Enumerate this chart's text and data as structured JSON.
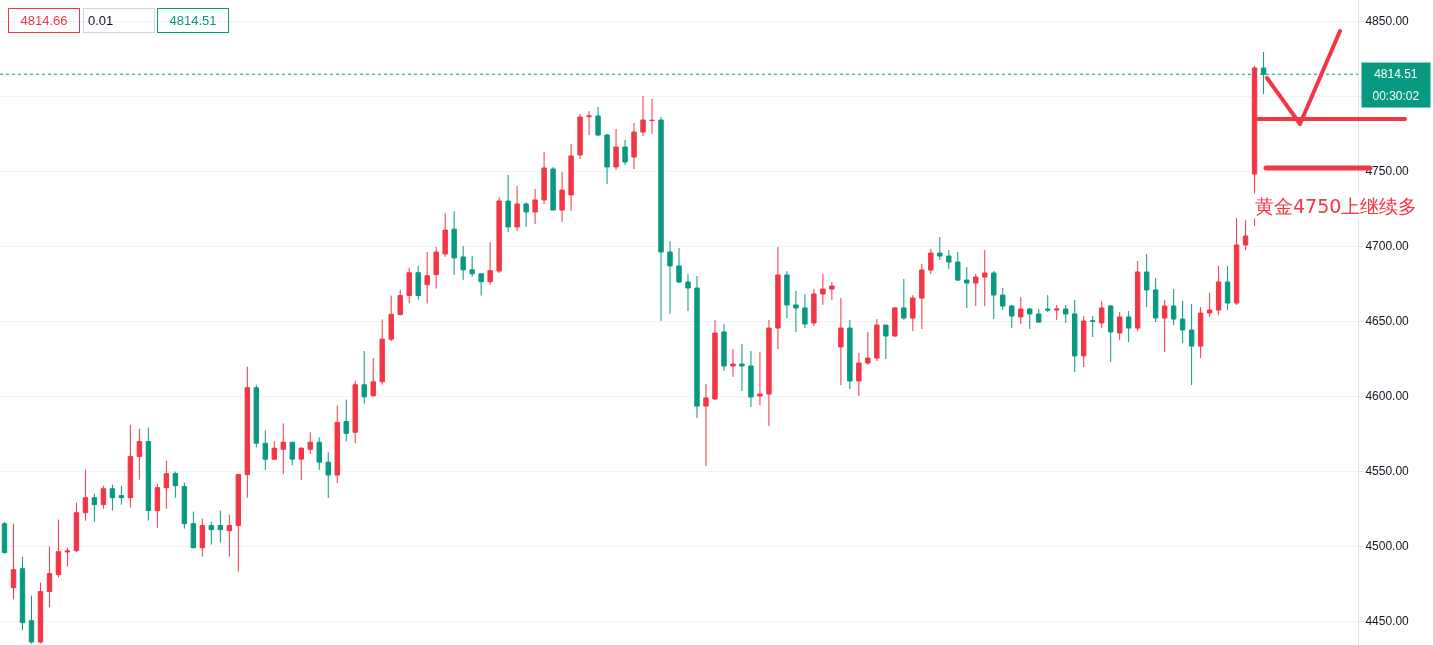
{
  "chart_data": {
    "type": "candlestick",
    "categories": [
      null,
      null,
      null,
      null,
      null,
      null,
      null,
      null,
      null,
      null,
      null,
      null,
      null,
      null,
      null,
      null,
      null,
      null,
      null,
      null,
      null,
      null,
      null,
      null,
      null,
      null,
      null,
      null,
      null,
      null,
      null,
      null,
      null,
      null,
      null,
      null,
      null,
      null,
      null,
      null,
      null,
      null,
      null,
      null,
      null,
      null,
      null,
      null,
      null,
      null,
      null,
      null,
      null,
      null,
      null,
      null,
      null,
      null,
      null,
      null,
      null,
      null,
      null,
      null,
      null,
      null,
      null,
      null,
      null,
      null,
      null,
      null,
      null,
      null,
      null,
      null,
      null,
      null,
      null,
      null,
      null,
      null,
      null,
      null,
      null,
      null,
      null,
      null,
      null,
      null,
      null,
      null,
      null,
      null,
      null,
      null,
      null,
      null,
      null,
      null,
      null,
      null,
      null,
      null,
      null,
      null,
      null,
      null,
      null,
      null,
      null,
      null,
      null,
      null,
      null,
      null,
      null,
      null,
      null,
      null,
      null,
      null,
      null,
      null,
      null,
      null,
      null,
      null,
      null,
      null,
      null,
      null,
      null,
      null,
      null,
      null,
      null,
      null,
      null,
      null,
      null,
      null,
      null,
      null,
      null,
      null,
      null,
      null,
      null,
      null,
      null
    ],
    "ohlc": [
      [
        4514.9,
        4516,
        4495,
        4495.6
      ],
      [
        4472.2,
        4514.9,
        4464.4,
        4484.2
      ],
      [
        4484.9,
        4492.9,
        4443.8,
        4448.9
      ],
      [
        4450.2,
        4466.9,
        4435,
        4436
      ],
      [
        4436,
        4475.6,
        4435,
        4469.6
      ],
      [
        4469.6,
        4499.6,
        4459.1,
        4481.6
      ],
      [
        4480.9,
        4517.6,
        4478.9,
        4496.2
      ],
      [
        4496,
        4498.9,
        4486.2,
        4496.7
      ],
      [
        4496.9,
        4528.9,
        4496,
        4522.2
      ],
      [
        4522.2,
        4550.9,
        4516.9,
        4532.2
      ],
      [
        4532.2,
        4534.9,
        4516.2,
        4527.6
      ],
      [
        4527.6,
        4540.2,
        4524.9,
        4538.2
      ],
      [
        4538.2,
        4540.9,
        4523.6,
        4532.2
      ],
      [
        4533.6,
        4540.2,
        4527.6,
        4532.2
      ],
      [
        4532.2,
        4580.9,
        4525.6,
        4559.6
      ],
      [
        4559.6,
        4578.2,
        4544.2,
        4569.6
      ],
      [
        4569.6,
        4578.9,
        4516.9,
        4523.6
      ],
      [
        4523.6,
        4541.6,
        4512.2,
        4538.9
      ],
      [
        4538.9,
        4556.9,
        4524.9,
        4548.2
      ],
      [
        4548.2,
        4549.6,
        4532.2,
        4540.2
      ],
      [
        4539.6,
        4542.2,
        4511.6,
        4514.9
      ],
      [
        4514.9,
        4522.9,
        4498.2,
        4498.9
      ],
      [
        4498.9,
        4518.2,
        4492.9,
        4513.6
      ],
      [
        4513.6,
        4516.2,
        4500.9,
        4510.9
      ],
      [
        4513.6,
        4523.6,
        4502.2,
        4510.9
      ],
      [
        4510.2,
        4520.9,
        4492.9,
        4513.6
      ],
      [
        4513.6,
        4548.2,
        4482.9,
        4547.6
      ],
      [
        4547.6,
        4619.6,
        4532.2,
        4605.6
      ],
      [
        4605.5,
        4607.5,
        4565.8,
        4568.5
      ],
      [
        4568.5,
        4577.1,
        4550.6,
        4557.9
      ],
      [
        4557.9,
        4569.8,
        4557.9,
        4565.2
      ],
      [
        4564.5,
        4581.7,
        4548,
        4569.2
      ],
      [
        4569.2,
        4569.2,
        4553.9,
        4557.9
      ],
      [
        4557.9,
        4565.8,
        4544,
        4565.2
      ],
      [
        4564.5,
        4575.8,
        4561.2,
        4569.2
      ],
      [
        4569.2,
        4572.4,
        4550.6,
        4555.9
      ],
      [
        4555.9,
        4562.5,
        4532.1,
        4547.3
      ],
      [
        4547.3,
        4593.6,
        4542,
        4582.4
      ],
      [
        4583,
        4597.6,
        4569.8,
        4575.1
      ],
      [
        4575.8,
        4610.1,
        4568.5,
        4607.5
      ],
      [
        4607.5,
        4630,
        4594.9,
        4599.5
      ],
      [
        4600.2,
        4625.3,
        4599.5,
        4609.5
      ],
      [
        4609.5,
        4651.1,
        4607.5,
        4637.9
      ],
      [
        4637.9,
        4667,
        4636.6,
        4654.4
      ],
      [
        4654.4,
        4670.9,
        4653.7,
        4667
      ],
      [
        4667,
        4685.5,
        4661.7,
        4682.2
      ],
      [
        4682.2,
        4686.8,
        4664.3,
        4667
      ],
      [
        4674.2,
        4696,
        4661.7,
        4680.2
      ],
      [
        4680.9,
        4699.3,
        4671.6,
        4696
      ],
      [
        4694.7,
        4721.8,
        4692.7,
        4710.6
      ],
      [
        4711.2,
        4723.1,
        4680.8,
        4692.1
      ],
      [
        4692.7,
        4700,
        4677.5,
        4684.1
      ],
      [
        4684.1,
        4693.4,
        4679.5,
        4681.5
      ],
      [
        4681.5,
        4681.5,
        4667,
        4676.2
      ],
      [
        4676.2,
        4702.6,
        4674.2,
        4683.5
      ],
      [
        4683.3,
        4732.7,
        4682,
        4730
      ],
      [
        4730,
        4747.3,
        4709.3,
        4712.7
      ],
      [
        4712.7,
        4740,
        4710,
        4728
      ],
      [
        4728,
        4729.3,
        4712.7,
        4722.7
      ],
      [
        4722.7,
        4738,
        4714.7,
        4730.7
      ],
      [
        4730.7,
        4762.7,
        4728,
        4752
      ],
      [
        4751.3,
        4752.7,
        4724,
        4724
      ],
      [
        4724,
        4749.3,
        4716,
        4737.3
      ],
      [
        4734,
        4768,
        4723.3,
        4760
      ],
      [
        4760.7,
        4788,
        4758,
        4786
      ],
      [
        4786.2,
        4790,
        4774,
        4786.7
      ],
      [
        4786.7,
        4792.7,
        4773.3,
        4774
      ],
      [
        4774,
        4774.7,
        4741.3,
        4752.7
      ],
      [
        4752.7,
        4778,
        4750.7,
        4766
      ],
      [
        4766,
        4770.7,
        4754,
        4756
      ],
      [
        4759.3,
        4782,
        4751.3,
        4776
      ],
      [
        4776,
        4800,
        4773.3,
        4784
      ],
      [
        4783.6,
        4798,
        4774.7,
        4783.8
      ],
      [
        4784,
        4786,
        4650,
        4696
      ],
      [
        4696,
        4703.3,
        4654.7,
        4686.7
      ],
      [
        4686.7,
        4698.7,
        4675.3,
        4676
      ],
      [
        4676,
        4681.3,
        4656.7,
        4672
      ],
      [
        4672,
        4680,
        4585.3,
        4593.3
      ],
      [
        4593.3,
        4608,
        4553.3,
        4598.7
      ],
      [
        4598,
        4650.7,
        4597.3,
        4642
      ],
      [
        4642.7,
        4648,
        4616.7,
        4620
      ],
      [
        4620,
        4631.3,
        4612.7,
        4621.3
      ],
      [
        4621.3,
        4634.7,
        4603.3,
        4620
      ],
      [
        4620,
        4630,
        4592.7,
        4599.3
      ],
      [
        4600,
        4629.3,
        4594,
        4601.3
      ],
      [
        4601.3,
        4650.7,
        4580,
        4645.3
      ],
      [
        4645.3,
        4699.3,
        4631.3,
        4680.7
      ],
      [
        4680.7,
        4683.3,
        4652,
        4660.7
      ],
      [
        4660.7,
        4670,
        4642.7,
        4658.7
      ],
      [
        4658.7,
        4668,
        4645.3,
        4648
      ],
      [
        4648.7,
        4671.3,
        4646.7,
        4668
      ],
      [
        4668,
        4681.3,
        4660.7,
        4671.3
      ],
      [
        4671.3,
        4676,
        4664,
        4673.3
      ],
      [
        4632.7,
        4665.3,
        4607.3,
        4645.3
      ],
      [
        4645.3,
        4650.7,
        4604.7,
        4610
      ],
      [
        4610,
        4628.7,
        4600,
        4622
      ],
      [
        4622,
        4642.7,
        4620.7,
        4625.3
      ],
      [
        4625.3,
        4651.3,
        4623.3,
        4647.3
      ],
      [
        4647.3,
        4647.3,
        4624.7,
        4640
      ],
      [
        4640,
        4659.3,
        4639.3,
        4658.7
      ],
      [
        4658.7,
        4678,
        4650.7,
        4652
      ],
      [
        4652,
        4667.3,
        4643.3,
        4665.3
      ],
      [
        4665.3,
        4688,
        4644.7,
        4684
      ],
      [
        4684,
        4698,
        4681.3,
        4695.3
      ],
      [
        4695.3,
        4706,
        4690.7,
        4693.3
      ],
      [
        4693.3,
        4697.3,
        4684.7,
        4689.3
      ],
      [
        4689.3,
        4696,
        4676.7,
        4677.3
      ],
      [
        4677.3,
        4686,
        4658.7,
        4675.3
      ],
      [
        4675.3,
        4681.3,
        4660,
        4679.3
      ],
      [
        4679.3,
        4697.3,
        4660,
        4682
      ],
      [
        4682,
        4683.3,
        4651.3,
        4667.3
      ],
      [
        4667.3,
        4672,
        4657.3,
        4660
      ],
      [
        4660,
        4660.7,
        4645.3,
        4653.3
      ],
      [
        4652.7,
        4666,
        4648,
        4658
      ],
      [
        4658,
        4658.7,
        4644.7,
        4654.7
      ],
      [
        4654.7,
        4658,
        4648.7,
        4649.3
      ],
      [
        4658,
        4667.3,
        4656,
        4657.3
      ],
      [
        4657.3,
        4660.7,
        4650.7,
        4658
      ],
      [
        4658,
        4660.7,
        4648.7,
        4654.7
      ],
      [
        4654.7,
        4664,
        4616,
        4626.7
      ],
      [
        4626.7,
        4653.3,
        4619.3,
        4650
      ],
      [
        4650.2,
        4653.3,
        4639.3,
        4649.8
      ],
      [
        4648.7,
        4663.3,
        4645.3,
        4658.7
      ],
      [
        4660,
        4660.7,
        4622.7,
        4642.7
      ],
      [
        4642,
        4656,
        4637.3,
        4652.7
      ],
      [
        4652.7,
        4656.7,
        4636,
        4645.3
      ],
      [
        4645.3,
        4690,
        4643.3,
        4682.7
      ],
      [
        4682.7,
        4694.7,
        4659.3,
        4670.7
      ],
      [
        4670.7,
        4678.7,
        4649.3,
        4652
      ],
      [
        4652,
        4664,
        4629.3,
        4660
      ],
      [
        4660,
        4671.3,
        4647.3,
        4651.3
      ],
      [
        4651.3,
        4663.3,
        4635.3,
        4644
      ],
      [
        4644,
        4661.3,
        4607.3,
        4633.3
      ],
      [
        4633.3,
        4659.3,
        4625.3,
        4655.3
      ],
      [
        4655.3,
        4668.7,
        4652.7,
        4657.3
      ],
      [
        4657.3,
        4686.7,
        4654,
        4676
      ],
      [
        4676,
        4686.7,
        4657.3,
        4662
      ],
      [
        4662,
        4718.7,
        4660.7,
        4700.7
      ],
      [
        4700.7,
        4717.3,
        4697.3,
        4706.7
      ],
      [
        4748,
        4820,
        4713.3,
        4818.7
      ],
      [
        4818.7,
        4829.3,
        4801.3,
        4814.51
      ],
      null,
      null,
      null,
      null,
      null,
      null,
      null,
      null,
      null,
      null
    ],
    "ylim": [
      4434,
      4864
    ],
    "yticks": [
      {
        "value": 4450,
        "label": "4450.00"
      },
      {
        "value": 4500,
        "label": "4500.00"
      },
      {
        "value": 4550,
        "label": "4550.00"
      },
      {
        "value": 4600,
        "label": "4600.00"
      },
      {
        "value": 4650,
        "label": "4650.00"
      },
      {
        "value": 4700,
        "label": "4700.00"
      },
      {
        "value": 4750,
        "label": "4750.00"
      },
      {
        "value": 4800,
        "label": null
      },
      {
        "value": 4850,
        "label": "4850.00"
      }
    ],
    "ref_lines": [
      {
        "axis": "y",
        "value": 4814.51,
        "label": "4814.51",
        "color": "#089981",
        "line_style": "dotted"
      }
    ],
    "annotations": [
      "4814.66",
      "0.01",
      "4814.51",
      "00:30:02",
      "黄金4750上继续多"
    ],
    "grid": "y",
    "legend": false,
    "tick_labels": "y"
  }
}
